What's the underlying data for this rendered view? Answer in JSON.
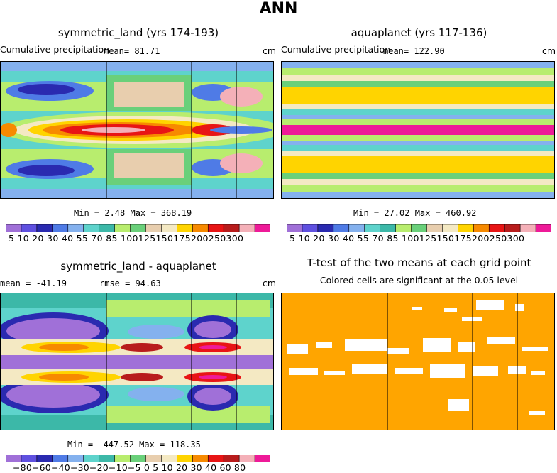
{
  "figure_title": "ANN",
  "colors": {
    "precip": [
      "#a070d8",
      "#5f50e0",
      "#2a2ab0",
      "#4f7be6",
      "#84b1ee",
      "#5ed3cc",
      "#3cb8a8",
      "#b8ed6e",
      "#6ad07a",
      "#e8ceae",
      "#f4e9c3",
      "#ffd400",
      "#f78a00",
      "#e81515",
      "#b81c1c",
      "#f4b0b8",
      "#ee1a98"
    ],
    "diff": [
      "#a070d8",
      "#5f50e0",
      "#2a2ab0",
      "#4f7be6",
      "#84b1ee",
      "#5ed3cc",
      "#3cb8a8",
      "#b8ed6e",
      "#6ad07a",
      "#e8ceae",
      "#f4e9c3",
      "#ffd400",
      "#f78a00",
      "#e81515",
      "#b81c1c",
      "#f4b0b8",
      "#ee1a98"
    ],
    "ttest": "#ffa500"
  },
  "panels": {
    "p1": {
      "title": "symmetric_land (yrs 174-193)",
      "left_label": "Cumulative precipitation",
      "mean_label": "mean=  81.71",
      "unit": "cm",
      "stats": "Min =   2.48 Max = 368.19"
    },
    "p2": {
      "title": "aquaplanet (yrs 117-136)",
      "left_label": "Cumulative precipitation",
      "mean_label": "mean= 122.90",
      "unit": "cm",
      "stats": "Min =  27.02 Max = 460.92"
    },
    "p3": {
      "title": "symmetric_land - aquaplanet",
      "left_label": "mean = -41.19",
      "mean_label": "rmse =  94.63",
      "unit": "cm",
      "stats": "Min = -447.52 Max = 118.35"
    },
    "p4": {
      "title": "T-test of the two means at each grid point",
      "subtitle": "Colored cells are significant at the 0.05 level"
    }
  },
  "chart_data": [
    {
      "type": "heatmap",
      "title": "symmetric_land (yrs 174-193)",
      "unit": "cm",
      "mean": 81.71,
      "min": 2.48,
      "max": 368.19,
      "levels": [
        5,
        10,
        20,
        30,
        40,
        55,
        70,
        85,
        100,
        125,
        150,
        175,
        200,
        250,
        300
      ],
      "colorbar_tick_text": "5 10 20 30 40 55 70 85 100125150175200250300"
    },
    {
      "type": "heatmap",
      "title": "aquaplanet (yrs 117-136)",
      "unit": "cm",
      "mean": 122.9,
      "min": 27.02,
      "max": 460.92,
      "levels": [
        5,
        10,
        20,
        30,
        40,
        55,
        70,
        85,
        100,
        125,
        150,
        175,
        200,
        250,
        300
      ],
      "colorbar_tick_text": "5 10 20 30 40 55 70 85 100125150175200250300"
    },
    {
      "type": "heatmap",
      "title": "symmetric_land - aquaplanet",
      "unit": "cm",
      "mean": -41.19,
      "rmse": 94.63,
      "min": -447.52,
      "max": 118.35,
      "levels": [
        -80,
        -60,
        -40,
        -30,
        -20,
        -10,
        -5,
        0,
        5,
        10,
        20,
        30,
        40,
        60,
        80
      ],
      "colorbar_tick_text": "−80−60−40−30−20−10−5  0  5  10 20 30 40 60 80"
    },
    {
      "type": "heatmap",
      "title": "T-test of the two means at each grid point",
      "subtitle": "Colored cells are significant at the 0.05 level",
      "significance_level": 0.05
    }
  ]
}
